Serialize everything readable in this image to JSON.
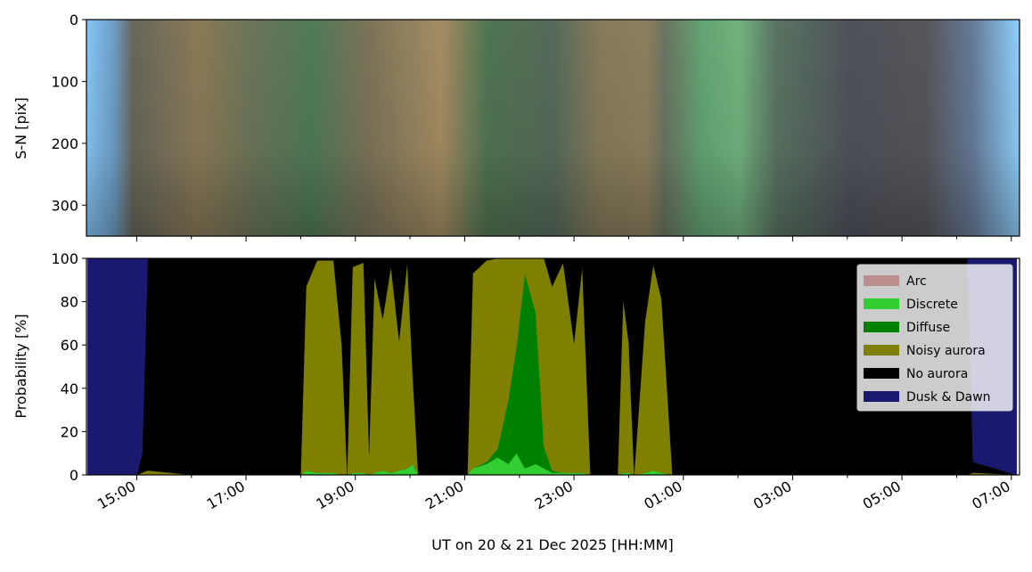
{
  "chart_data": [
    {
      "type": "image",
      "ylabel": "S-N [pix]",
      "ylim": [
        0,
        350
      ],
      "y_inverted": true,
      "yticks": [
        0,
        100,
        200,
        300
      ]
    },
    {
      "type": "area",
      "stacked": true,
      "ylabel": "Probability [%]",
      "xlabel": "UT on 20 & 21 Dec 2025 [HH:MM]",
      "xlim": [
        14.08,
        31.15
      ],
      "xticks": [
        {
          "value": 15,
          "label": "15:00"
        },
        {
          "value": 17,
          "label": "17:00"
        },
        {
          "value": 19,
          "label": "19:00"
        },
        {
          "value": 21,
          "label": "21:00"
        },
        {
          "value": 23,
          "label": "23:00"
        },
        {
          "value": 25,
          "label": "01:00"
        },
        {
          "value": 27,
          "label": "03:00"
        },
        {
          "value": 29,
          "label": "05:00"
        },
        {
          "value": 31,
          "label": "07:00"
        }
      ],
      "minor_xticks": [
        16,
        18,
        20,
        22,
        24,
        26,
        28,
        30
      ],
      "ylim": [
        0,
        100
      ],
      "yticks": [
        0,
        20,
        40,
        60,
        80,
        100
      ],
      "legend": "upper right",
      "x": [
        14.1,
        15.0,
        15.1,
        15.2,
        16.0,
        18.0,
        18.1,
        18.3,
        18.6,
        18.75,
        18.85,
        18.95,
        19.15,
        19.25,
        19.35,
        19.5,
        19.65,
        19.8,
        19.95,
        20.05,
        20.15,
        21.05,
        21.15,
        21.4,
        21.6,
        21.8,
        21.95,
        22.1,
        22.3,
        22.45,
        22.6,
        22.8,
        23.0,
        23.15,
        23.3,
        23.8,
        23.9,
        24.0,
        24.1,
        24.3,
        24.45,
        24.6,
        24.8,
        30.2,
        30.3,
        31.1
      ],
      "series": [
        {
          "name": "Arc",
          "color": "#bc8f8f",
          "values": [
            0,
            0,
            0,
            0,
            0,
            0,
            0,
            0,
            0,
            0,
            0,
            0,
            0,
            0,
            0,
            0,
            0,
            0,
            0,
            0,
            0,
            0,
            0,
            0,
            0,
            0,
            0,
            0,
            0,
            0,
            0,
            0,
            0,
            0,
            0,
            0,
            0,
            0,
            0,
            0,
            0,
            0,
            0,
            0,
            0,
            0
          ]
        },
        {
          "name": "Discrete",
          "color": "#32cd32",
          "values": [
            0,
            0,
            0,
            0,
            0,
            0,
            2,
            1,
            1,
            0,
            0,
            1,
            1,
            0,
            1,
            2,
            1,
            2,
            3,
            5,
            0,
            0,
            3,
            5,
            8,
            5,
            10,
            3,
            5,
            3,
            1,
            1,
            1,
            1,
            0,
            0,
            1,
            1,
            0,
            1,
            2,
            1,
            0,
            0,
            0,
            0
          ]
        },
        {
          "name": "Diffuse",
          "color": "#008000",
          "values": [
            0,
            0,
            0,
            0,
            0,
            0,
            0,
            0,
            0,
            0,
            0,
            0,
            0,
            0,
            0,
            0,
            0,
            0,
            0,
            0,
            0,
            0,
            0,
            1,
            4,
            30,
            50,
            90,
            70,
            10,
            1,
            0,
            0,
            0,
            0,
            0,
            0,
            0,
            0,
            0,
            0,
            0,
            0,
            0,
            0,
            0
          ]
        },
        {
          "name": "Noisy aurora",
          "color": "#808000",
          "values": [
            0,
            0,
            1,
            2,
            0,
            0,
            85,
            98,
            98,
            60,
            0,
            95,
            97,
            10,
            90,
            70,
            95,
            60,
            95,
            40,
            0,
            0,
            90,
            93,
            88,
            65,
            40,
            7,
            25,
            87,
            85,
            97,
            60,
            95,
            0,
            0,
            80,
            60,
            0,
            70,
            95,
            80,
            0,
            0,
            1,
            0
          ]
        },
        {
          "name": "No aurora",
          "color": "#000000",
          "values": [
            0,
            0,
            9,
            98,
            100,
            100,
            13,
            1,
            1,
            40,
            100,
            4,
            2,
            90,
            9,
            28,
            4,
            38,
            2,
            55,
            100,
            100,
            7,
            1,
            0,
            0,
            0,
            0,
            0,
            0,
            13,
            2,
            39,
            4,
            100,
            100,
            19,
            39,
            100,
            29,
            3,
            19,
            100,
            100,
            5,
            0
          ]
        },
        {
          "name": "Dusk & Dawn",
          "color": "#191970",
          "values": [
            100,
            100,
            90,
            0,
            0,
            0,
            0,
            0,
            0,
            0,
            0,
            0,
            0,
            0,
            0,
            0,
            0,
            0,
            0,
            0,
            0,
            0,
            0,
            0,
            0,
            0,
            0,
            0,
            0,
            0,
            0,
            0,
            0,
            0,
            0,
            0,
            0,
            0,
            0,
            0,
            0,
            0,
            0,
            0,
            94,
            100
          ]
        }
      ]
    }
  ]
}
